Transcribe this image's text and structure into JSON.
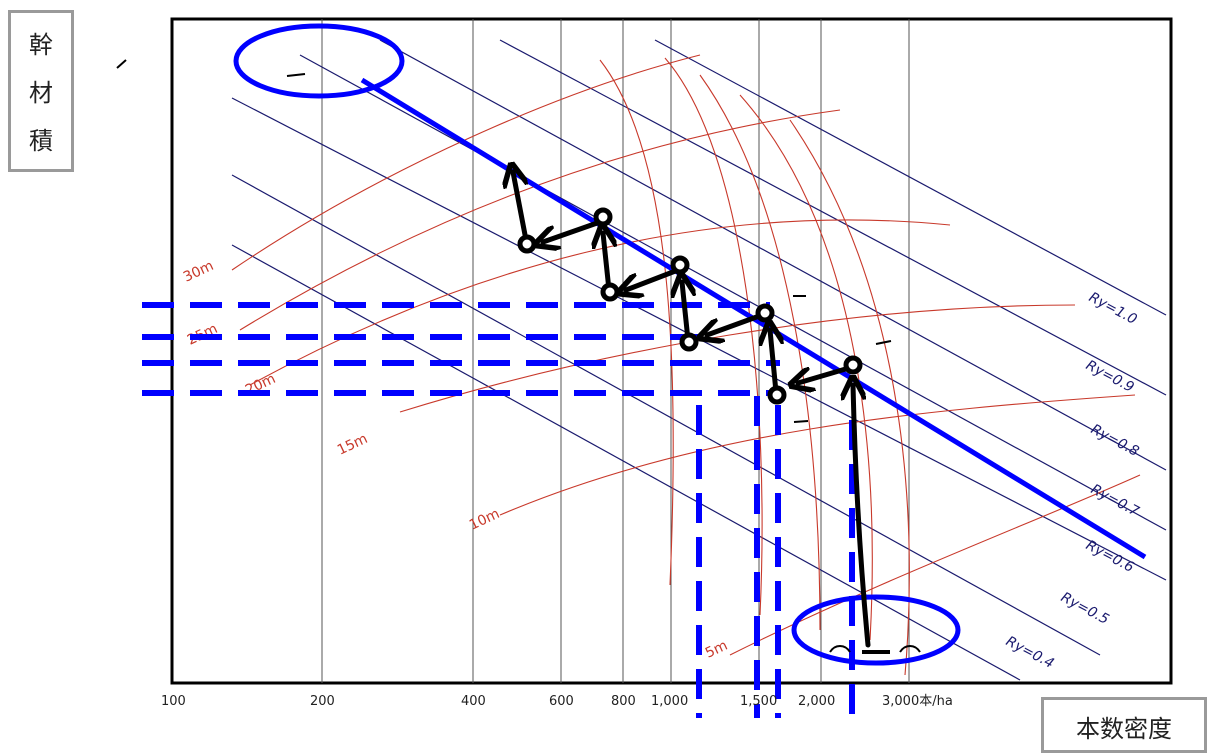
{
  "chart_data": {
    "type": "stand-density-control-diagram",
    "ylabel": "幹材積",
    "xlabel": "本数密度",
    "x_ticks": [
      "100",
      "200",
      "400",
      "600",
      "800",
      "1,000",
      "1,500",
      "2,000",
      "3,000本/ha"
    ],
    "x_scale": "log",
    "height_curves": [
      "30m",
      "25m",
      "20m",
      "15m",
      "10m",
      "5m"
    ],
    "yield_index_lines": [
      "Ry=1.0",
      "Ry=0.9",
      "Ry=0.8",
      "Ry=0.7",
      "Ry=0.6",
      "Ry=0.5",
      "Ry=0.4"
    ],
    "management_line": {
      "color": "#0000ff",
      "from_density": 170,
      "to_density": 6500
    },
    "thinning_path_density": [
      2400,
      1500,
      1050,
      760
    ],
    "grid": true
  },
  "colors": {
    "frame": "#000000",
    "grid": "#555555",
    "ry_lines": "#1a1a6e",
    "height_curves": "#c8392b",
    "overlay_blue": "#0000ff",
    "arrows": "#000000"
  }
}
